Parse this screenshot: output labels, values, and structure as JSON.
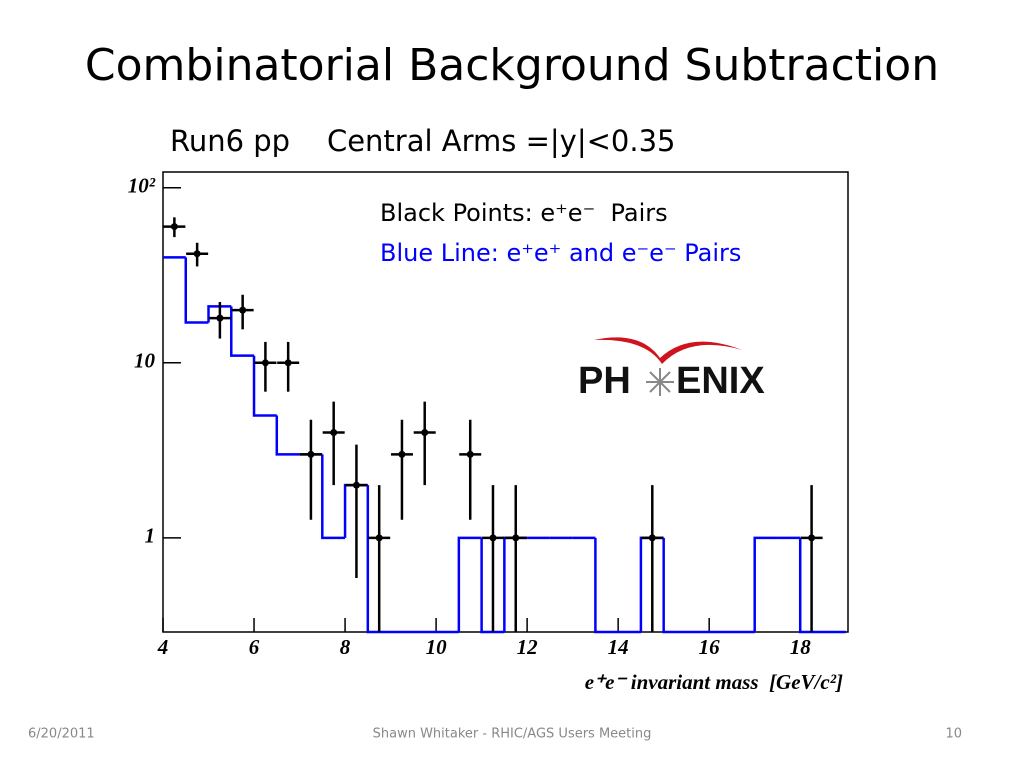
{
  "slide_title": "Combinatorial Background Subtraction",
  "footer": {
    "date": "6/20/2011",
    "center": "Shawn Whitaker - RHIC/AGS Users Meeting",
    "page": "10"
  },
  "logo": {
    "left": "PH",
    "right": "ENIX"
  },
  "chart_data": {
    "type": "scatter",
    "subtitle": "Run6 pp    Central Arms =|y|<0.35",
    "x_label": "e⁺e⁻ invariant mass  [GeV/c²]",
    "log_y": true,
    "xlim": [
      4,
      19.05
    ],
    "xticks": [
      4,
      6,
      8,
      10,
      12,
      14,
      16,
      18
    ],
    "ylim": [
      0.29,
      123
    ],
    "yticks": [
      1,
      10,
      {
        "value": 100,
        "label": "10²"
      }
    ],
    "series": [
      {
        "name": "Black Points: e⁺e⁻  Pairs",
        "type": "errorbar",
        "color": "#000000",
        "x": [
          4.25,
          4.75,
          5.25,
          5.75,
          6.25,
          6.75,
          7.25,
          7.75,
          8.25,
          8.75,
          9.25,
          9.75,
          10.75,
          11.25,
          11.75,
          14.75,
          18.25
        ],
        "values": [
          60,
          42,
          18,
          20,
          10,
          10,
          3,
          4,
          2,
          1,
          3,
          4,
          3,
          1,
          1,
          1,
          1
        ],
        "errors": [
          7.75,
          6.48,
          4.24,
          4.47,
          3.16,
          3.16,
          1.73,
          2,
          1.41,
          1,
          1.73,
          2,
          1.73,
          1,
          1,
          1,
          1
        ]
      },
      {
        "name": "Blue Line: e⁺e⁺ and e⁻e⁻ Pairs",
        "type": "step",
        "color": "#0000ff",
        "bins": [
          4,
          4.5,
          5,
          5.5,
          6,
          6.5,
          7,
          7.5,
          8,
          8.5,
          9,
          9.5,
          10,
          10.5,
          11,
          11.5,
          12,
          12.5,
          13,
          13.5,
          14,
          14.5,
          15,
          15.5,
          16,
          16.5,
          17,
          17.5,
          18,
          18.5,
          19
        ],
        "values": [
          40,
          17,
          21,
          11,
          5,
          3,
          3,
          1,
          2,
          0,
          0,
          0,
          0,
          1,
          0,
          1,
          1,
          1,
          1,
          0,
          0,
          1,
          0,
          0,
          0,
          0,
          1,
          1,
          0,
          0
        ]
      }
    ]
  }
}
